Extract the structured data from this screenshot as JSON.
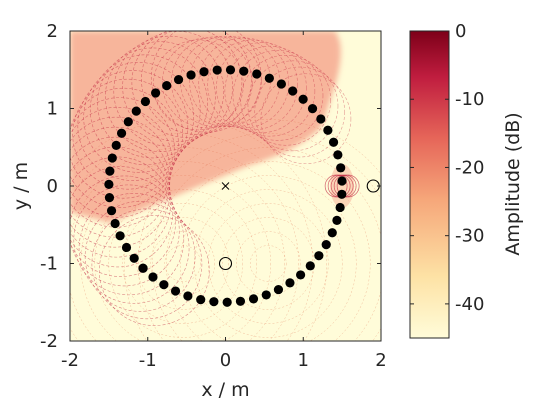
{
  "chart_data": {
    "type": "heatmap",
    "title": "",
    "xlabel": "x / m",
    "ylabel": "y / m",
    "xlim": [
      -2,
      2
    ],
    "ylim": [
      -2,
      2
    ],
    "xticks": [
      "-2",
      "-1",
      "0",
      "1",
      "2"
    ],
    "yticks": [
      "-2",
      "-1",
      "0",
      "1",
      "2"
    ],
    "colorbar": {
      "label": "Amplitude (dB)",
      "range": [
        -45,
        0
      ],
      "ticks": [
        "0",
        "-10",
        "-20",
        "-30",
        "-40"
      ],
      "colors": [
        "#fffcd9",
        "#fde2a5",
        "#f6a77a",
        "#e66659",
        "#c01d3f",
        "#7d0019"
      ]
    },
    "secondary_sources": {
      "shape": "circle",
      "center": [
        0,
        0
      ],
      "radius": 1.5,
      "active_arc_deg": [
        -135,
        225
      ],
      "count": 56,
      "marker": "filled-circle",
      "color": "#000000"
    },
    "virtual_sources": [
      {
        "x": 0,
        "y": -1,
        "marker": "open-circle"
      },
      {
        "x": 1.9,
        "y": 0,
        "marker": "open-circle"
      }
    ],
    "reference_point": {
      "x": 0,
      "y": 0,
      "marker": "cross"
    },
    "grid": false,
    "legend": "none"
  }
}
